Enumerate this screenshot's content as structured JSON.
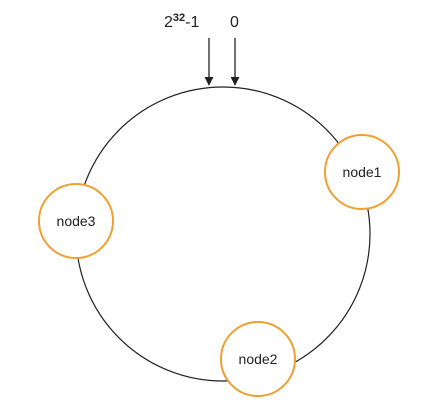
{
  "ring": {
    "labels": {
      "max_base": "2",
      "max_exponent": "32",
      "max_suffix": "-1",
      "zero": "0"
    }
  },
  "nodes": [
    {
      "label": "node1"
    },
    {
      "label": "node2"
    },
    {
      "label": "node3"
    }
  ],
  "colors": {
    "ring_stroke": "#222222",
    "node_stroke": "#f0a030",
    "node_fill": "#ffffff",
    "text": "#222222",
    "arrow": "#222222"
  }
}
